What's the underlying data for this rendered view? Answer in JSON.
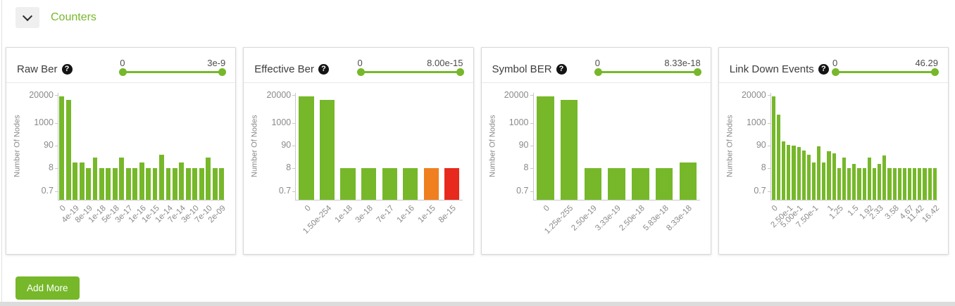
{
  "colors": {
    "green": "#76b82a",
    "orange": "#ef7f1f",
    "red": "#e8291d"
  },
  "section_header": {
    "label": "Counters",
    "collapse_icon": "chevron-down"
  },
  "buttons": {
    "add_more": "Add More"
  },
  "panels": [
    {
      "title": "Raw Ber",
      "help_icon": "question-mark",
      "slider": {
        "min_label": "0",
        "max_label": "3e-9"
      },
      "chart_data": {
        "type": "bar",
        "ylabel": "Number Of Nodes",
        "yticks": [
          {
            "v": 20000,
            "t": "20000"
          },
          {
            "v": 1000,
            "t": "1000"
          },
          {
            "v": 90,
            "t": "90"
          },
          {
            "v": 8,
            "t": "8"
          },
          {
            "v": 0.7,
            "t": "0.7"
          }
        ],
        "values": [
          18000,
          12000,
          15,
          15,
          8,
          25,
          8,
          8,
          8,
          25,
          8,
          8,
          15,
          8,
          8,
          35,
          8,
          8,
          15,
          8,
          8,
          8,
          25,
          8,
          8
        ],
        "x_tick_labels": [
          {
            "text": "0",
            "bar_index": 0
          },
          {
            "text": "4e-19",
            "bar_index": 2
          },
          {
            "text": "8e-19",
            "bar_index": 4
          },
          {
            "text": "1e-18",
            "bar_index": 6
          },
          {
            "text": "5e-18",
            "bar_index": 8
          },
          {
            "text": "3e-17",
            "bar_index": 10
          },
          {
            "text": "1e-16",
            "bar_index": 12
          },
          {
            "text": "1e-15",
            "bar_index": 14
          },
          {
            "text": "1e-14",
            "bar_index": 16
          },
          {
            "text": "7e-14",
            "bar_index": 18
          },
          {
            "text": "3e-10",
            "bar_index": 20
          },
          {
            "text": "7e-10",
            "bar_index": 22
          },
          {
            "text": "2e-09",
            "bar_index": 24
          }
        ]
      }
    },
    {
      "title": "Effective Ber",
      "help_icon": "question-mark",
      "slider": {
        "min_label": "0",
        "max_label": "8.00e-15"
      },
      "chart_data": {
        "type": "bar",
        "ylabel": "Number Of Nodes",
        "yticks": [
          {
            "v": 20000,
            "t": "20000"
          },
          {
            "v": 1000,
            "t": "1000"
          },
          {
            "v": 90,
            "t": "90"
          },
          {
            "v": 8,
            "t": "8"
          },
          {
            "v": 0.7,
            "t": "0.7"
          }
        ],
        "values": [
          18000,
          12000,
          8,
          8,
          8,
          8,
          8,
          8
        ],
        "bar_colors": {
          "6": "#ef7f1f",
          "7": "#e8291d"
        },
        "x_tick_labels": [
          {
            "text": "0",
            "bar_index": 0
          },
          {
            "text": "1.50e-254",
            "bar_index": 1
          },
          {
            "text": "1e-18",
            "bar_index": 2
          },
          {
            "text": "3e-18",
            "bar_index": 3
          },
          {
            "text": "7e-17",
            "bar_index": 4
          },
          {
            "text": "1e-16",
            "bar_index": 5
          },
          {
            "text": "1e-15",
            "bar_index": 6
          },
          {
            "text": "8e-15",
            "bar_index": 7
          }
        ]
      }
    },
    {
      "title": "Symbol BER",
      "help_icon": "question-mark",
      "slider": {
        "min_label": "0",
        "max_label": "8.33e-18"
      },
      "chart_data": {
        "type": "bar",
        "ylabel": "Number Of Nodes",
        "yticks": [
          {
            "v": 20000,
            "t": "20000"
          },
          {
            "v": 1000,
            "t": "1000"
          },
          {
            "v": 90,
            "t": "90"
          },
          {
            "v": 8,
            "t": "8"
          },
          {
            "v": 0.7,
            "t": "0.7"
          }
        ],
        "values": [
          18000,
          12000,
          8,
          8,
          8,
          8,
          15
        ],
        "x_tick_labels": [
          {
            "text": "0",
            "bar_index": 0
          },
          {
            "text": "1.25e-255",
            "bar_index": 1
          },
          {
            "text": "2.50e-19",
            "bar_index": 2
          },
          {
            "text": "3.33e-19",
            "bar_index": 3
          },
          {
            "text": "2.50e-18",
            "bar_index": 4
          },
          {
            "text": "5.83e-18",
            "bar_index": 5
          },
          {
            "text": "8.33e-18",
            "bar_index": 6
          }
        ]
      }
    },
    {
      "title": "Link Down Events",
      "help_icon": "question-mark",
      "slider": {
        "min_label": "0",
        "max_label": "46.29"
      },
      "chart_data": {
        "type": "bar",
        "ylabel": "Number Of Nodes",
        "yticks": [
          {
            "v": 20000,
            "t": "20000"
          },
          {
            "v": 1000,
            "t": "1000"
          },
          {
            "v": 90,
            "t": "90"
          },
          {
            "v": 8,
            "t": "8"
          },
          {
            "v": 0.7,
            "t": "0.7"
          }
        ],
        "values": [
          18000,
          2500,
          150,
          100,
          90,
          80,
          55,
          35,
          15,
          85,
          15,
          50,
          40,
          8,
          25,
          8,
          13,
          8,
          8,
          25,
          8,
          13,
          33,
          8,
          8,
          8,
          8,
          8,
          8,
          8,
          8,
          8,
          8
        ],
        "x_tick_labels": [
          {
            "text": "0",
            "bar_index": 0
          },
          {
            "text": "2.50e-1",
            "bar_index": 3
          },
          {
            "text": "5.00e-1",
            "bar_index": 5
          },
          {
            "text": "7.50e-1",
            "bar_index": 8
          },
          {
            "text": "1",
            "bar_index": 11
          },
          {
            "text": "1.25",
            "bar_index": 13
          },
          {
            "text": "1.5",
            "bar_index": 16
          },
          {
            "text": "1.92",
            "bar_index": 19
          },
          {
            "text": "2.33",
            "bar_index": 21
          },
          {
            "text": "3.58",
            "bar_index": 24
          },
          {
            "text": "4.67",
            "bar_index": 27
          },
          {
            "text": "11.42",
            "bar_index": 29
          },
          {
            "text": "16.42",
            "bar_index": 32
          }
        ]
      }
    }
  ]
}
